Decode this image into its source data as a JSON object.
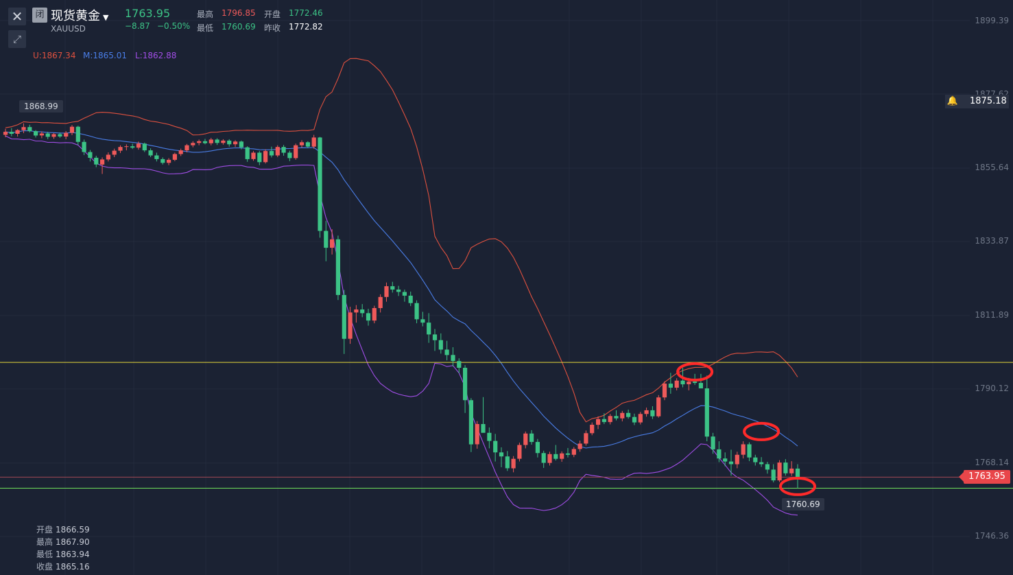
{
  "header": {
    "status_badge": "闭",
    "title": "现货黄金",
    "symbol": "XAUUSD",
    "last_price": "1763.95",
    "change": "−8.87",
    "change_pct": "−0.50%",
    "high_label": "最高",
    "high_value": "1796.85",
    "open_label": "开盘",
    "open_value": "1772.46",
    "low_label": "最低",
    "low_value": "1760.69",
    "prev_close_label": "昨收",
    "prev_close_value": "1772.82"
  },
  "bollinger": {
    "upper": "U:1867.34",
    "middle": "M:1865.01",
    "lower": "L:1862.88"
  },
  "ohlc_panel": {
    "open_label": "开盘",
    "open_value": "1866.59",
    "high_label": "最高",
    "high_value": "1867.90",
    "low_label": "最低",
    "low_value": "1863.94",
    "close_label": "收盘",
    "close_value": "1865.16"
  },
  "markers": {
    "max_label": "1868.99",
    "min_label": "1760.69",
    "alert_price": "1875.18",
    "current_price": "1763.95"
  },
  "colors": {
    "up": "#ef5a5a",
    "down": "#3cc386",
    "upper_band": "#e0513f",
    "middle_band": "#4a7ee8",
    "lower_band": "#a24ee8",
    "resistance_line": "#e6d93a",
    "support_line": "#6fe05a",
    "circle": "#ff2a2a"
  },
  "icons": {
    "close": "close-icon",
    "expand": "expand-icon",
    "alert": "bell-icon",
    "dropdown": "caret-down-icon"
  },
  "chart_data": {
    "type": "candlestick",
    "y_ticks": [
      "1899.39",
      "1877.62",
      "1855.64",
      "1833.87",
      "1811.89",
      "1790.12",
      "1768.14",
      "1746.36"
    ],
    "ylim": [
      1735,
      1905
    ],
    "horizontal_lines": [
      {
        "name": "resistance",
        "value": 1798.0
      },
      {
        "name": "current",
        "value": 1763.95
      },
      {
        "name": "support",
        "value": 1760.69
      }
    ],
    "candles": [
      [
        1865.5,
        1867.3,
        1864.8,
        1866.4
      ],
      [
        1866.4,
        1867.5,
        1865.1,
        1865.8
      ],
      [
        1865.8,
        1867.2,
        1865.0,
        1866.9
      ],
      [
        1866.9,
        1868.9,
        1866.0,
        1867.8
      ],
      [
        1867.8,
        1868.5,
        1866.2,
        1866.6
      ],
      [
        1866.6,
        1866.9,
        1864.7,
        1865.3
      ],
      [
        1865.3,
        1866.5,
        1864.5,
        1865.9
      ],
      [
        1865.9,
        1866.4,
        1864.2,
        1864.9
      ],
      [
        1864.9,
        1866.0,
        1864.3,
        1865.7
      ],
      [
        1865.7,
        1866.2,
        1864.6,
        1865.0
      ],
      [
        1865.0,
        1866.6,
        1864.2,
        1866.1
      ],
      [
        1866.1,
        1868.4,
        1865.4,
        1867.9
      ],
      [
        1867.9,
        1868.2,
        1862.5,
        1863.4
      ],
      [
        1863.4,
        1864.1,
        1859.5,
        1860.4
      ],
      [
        1860.4,
        1861.0,
        1857.6,
        1858.7
      ],
      [
        1858.7,
        1859.3,
        1855.9,
        1856.7
      ],
      [
        1856.7,
        1858.8,
        1853.9,
        1858.2
      ],
      [
        1858.2,
        1860.3,
        1857.6,
        1859.6
      ],
      [
        1859.6,
        1861.4,
        1858.9,
        1860.8
      ],
      [
        1860.8,
        1862.4,
        1860.1,
        1861.9
      ],
      [
        1861.9,
        1862.7,
        1860.9,
        1862.1
      ],
      [
        1862.1,
        1862.9,
        1861.3,
        1861.7
      ],
      [
        1861.7,
        1863.5,
        1861.1,
        1862.9
      ],
      [
        1862.9,
        1863.2,
        1860.4,
        1860.9
      ],
      [
        1860.9,
        1861.5,
        1858.9,
        1859.4
      ],
      [
        1859.4,
        1860.2,
        1857.6,
        1858.3
      ],
      [
        1858.3,
        1858.8,
        1856.7,
        1857.2
      ],
      [
        1857.2,
        1858.6,
        1856.5,
        1858.1
      ],
      [
        1858.1,
        1860.2,
        1857.7,
        1859.8
      ],
      [
        1859.8,
        1861.4,
        1859.2,
        1860.9
      ],
      [
        1860.9,
        1862.8,
        1860.3,
        1862.4
      ],
      [
        1862.4,
        1863.6,
        1861.8,
        1863.1
      ],
      [
        1863.1,
        1864.1,
        1862.4,
        1863.6
      ],
      [
        1863.6,
        1864.3,
        1862.7,
        1863.0
      ],
      [
        1863.0,
        1864.6,
        1862.4,
        1864.1
      ],
      [
        1864.1,
        1864.5,
        1862.5,
        1863.1
      ],
      [
        1863.1,
        1864.2,
        1862.6,
        1863.8
      ],
      [
        1863.8,
        1864.2,
        1862.0,
        1862.7
      ],
      [
        1862.7,
        1863.9,
        1861.9,
        1863.5
      ],
      [
        1863.5,
        1863.8,
        1861.2,
        1861.8
      ],
      [
        1861.8,
        1862.1,
        1857.5,
        1858.3
      ],
      [
        1858.3,
        1860.7,
        1857.8,
        1860.2
      ],
      [
        1860.2,
        1860.7,
        1856.5,
        1857.4
      ],
      [
        1857.4,
        1861.2,
        1857.0,
        1860.7
      ],
      [
        1860.7,
        1862.0,
        1858.8,
        1859.4
      ],
      [
        1859.4,
        1862.4,
        1858.9,
        1861.9
      ],
      [
        1861.9,
        1862.5,
        1859.3,
        1860.2
      ],
      [
        1860.2,
        1860.8,
        1857.7,
        1858.6
      ],
      [
        1858.6,
        1862.9,
        1858.1,
        1862.4
      ],
      [
        1862.4,
        1863.9,
        1861.7,
        1863.3
      ],
      [
        1863.3,
        1863.6,
        1861.6,
        1862.0
      ],
      [
        1862.0,
        1865.5,
        1861.4,
        1864.7
      ],
      [
        1864.7,
        1864.9,
        1835.0,
        1837.0
      ],
      [
        1837.0,
        1840.0,
        1828.0,
        1832.0
      ],
      [
        1832.0,
        1837.5,
        1830.0,
        1834.5
      ],
      [
        1834.5,
        1835.6,
        1816.5,
        1818.0
      ],
      [
        1818.0,
        1819.5,
        1800.5,
        1805.0
      ],
      [
        1805.0,
        1814.5,
        1803.5,
        1812.8
      ],
      [
        1812.8,
        1815.0,
        1809.8,
        1813.7
      ],
      [
        1813.7,
        1815.3,
        1811.4,
        1812.6
      ],
      [
        1812.6,
        1813.9,
        1808.9,
        1810.4
      ],
      [
        1810.4,
        1814.8,
        1809.6,
        1814.1
      ],
      [
        1814.1,
        1818.2,
        1812.8,
        1817.4
      ],
      [
        1817.4,
        1821.7,
        1816.0,
        1820.6
      ],
      [
        1820.6,
        1821.9,
        1818.7,
        1819.6
      ],
      [
        1819.6,
        1820.7,
        1817.7,
        1818.9
      ],
      [
        1818.9,
        1819.6,
        1816.0,
        1817.8
      ],
      [
        1817.8,
        1819.0,
        1814.7,
        1815.6
      ],
      [
        1815.6,
        1816.4,
        1809.6,
        1810.8
      ],
      [
        1810.8,
        1813.0,
        1808.7,
        1809.8
      ],
      [
        1809.8,
        1812.6,
        1803.8,
        1806.3
      ],
      [
        1806.3,
        1807.9,
        1801.4,
        1804.6
      ],
      [
        1804.6,
        1806.6,
        1800.6,
        1801.8
      ],
      [
        1801.8,
        1804.4,
        1798.6,
        1800.2
      ],
      [
        1800.2,
        1802.5,
        1796.8,
        1798.4
      ],
      [
        1798.4,
        1799.2,
        1794.8,
        1796.4
      ],
      [
        1796.4,
        1797.2,
        1783.0,
        1786.8
      ],
      [
        1786.8,
        1787.4,
        1771.4,
        1773.7
      ],
      [
        1773.7,
        1780.6,
        1772.4,
        1779.7
      ],
      [
        1779.7,
        1787.7,
        1778.7,
        1777.1
      ],
      [
        1777.1,
        1778.7,
        1772.5,
        1774.7
      ],
      [
        1774.7,
        1776.8,
        1768.6,
        1771.3
      ],
      [
        1771.3,
        1772.8,
        1766.9,
        1770.1
      ],
      [
        1770.1,
        1771.7,
        1765.8,
        1766.6
      ],
      [
        1766.6,
        1770.2,
        1765.4,
        1769.4
      ],
      [
        1769.4,
        1774.2,
        1768.6,
        1773.5
      ],
      [
        1773.5,
        1777.5,
        1772.5,
        1776.9
      ],
      [
        1776.9,
        1777.9,
        1773.6,
        1774.4
      ],
      [
        1774.4,
        1775.3,
        1769.8,
        1771.1
      ],
      [
        1771.1,
        1771.8,
        1766.7,
        1768.2
      ],
      [
        1768.2,
        1771.5,
        1767.4,
        1770.8
      ],
      [
        1770.8,
        1773.5,
        1768.9,
        1769.4
      ],
      [
        1769.4,
        1771.6,
        1768.5,
        1771.0
      ],
      [
        1771.0,
        1772.6,
        1769.8,
        1770.6
      ],
      [
        1770.6,
        1772.9,
        1769.9,
        1772.3
      ],
      [
        1772.3,
        1774.8,
        1771.5,
        1773.9
      ],
      [
        1773.9,
        1777.8,
        1773.3,
        1777.0
      ],
      [
        1777.0,
        1780.2,
        1776.4,
        1779.5
      ],
      [
        1779.5,
        1782.0,
        1778.2,
        1781.2
      ],
      [
        1781.2,
        1782.9,
        1779.7,
        1780.3
      ],
      [
        1780.3,
        1782.7,
        1779.6,
        1782.1
      ],
      [
        1782.1,
        1783.8,
        1780.8,
        1781.4
      ],
      [
        1781.4,
        1783.6,
        1780.5,
        1783.0
      ],
      [
        1783.0,
        1784.0,
        1781.3,
        1781.8
      ],
      [
        1781.8,
        1782.8,
        1779.4,
        1780.2
      ],
      [
        1780.2,
        1783.3,
        1779.6,
        1782.7
      ],
      [
        1782.7,
        1784.6,
        1781.9,
        1783.8
      ],
      [
        1783.8,
        1785.0,
        1781.2,
        1782.0
      ],
      [
        1782.0,
        1788.3,
        1781.6,
        1787.6
      ],
      [
        1787.6,
        1792.4,
        1786.8,
        1791.7
      ],
      [
        1791.7,
        1794.9,
        1788.7,
        1790.5
      ],
      [
        1790.5,
        1793.3,
        1789.7,
        1792.6
      ],
      [
        1792.6,
        1796.4,
        1790.6,
        1791.5
      ],
      [
        1791.5,
        1793.4,
        1789.7,
        1792.3
      ],
      [
        1792.3,
        1794.6,
        1791.3,
        1791.9
      ],
      [
        1791.9,
        1794.6,
        1790.8,
        1790.3
      ],
      [
        1790.3,
        1794.1,
        1774.6,
        1776.0
      ],
      [
        1776.0,
        1777.1,
        1770.9,
        1772.2
      ],
      [
        1772.2,
        1774.6,
        1768.4,
        1769.5
      ],
      [
        1769.5,
        1771.3,
        1767.2,
        1768.6
      ],
      [
        1768.6,
        1772.1,
        1764.4,
        1767.8
      ],
      [
        1767.8,
        1771.5,
        1766.6,
        1770.6
      ],
      [
        1770.6,
        1774.6,
        1769.5,
        1773.7
      ],
      [
        1773.7,
        1774.3,
        1768.7,
        1769.8
      ],
      [
        1769.8,
        1770.6,
        1767.4,
        1768.4
      ],
      [
        1768.4,
        1769.9,
        1767.0,
        1767.8
      ],
      [
        1767.8,
        1768.5,
        1765.0,
        1766.2
      ],
      [
        1766.2,
        1767.8,
        1762.4,
        1763.0
      ],
      [
        1763.0,
        1769.0,
        1762.5,
        1768.3
      ],
      [
        1768.3,
        1769.3,
        1764.4,
        1765.1
      ],
      [
        1765.1,
        1768.7,
        1764.3,
        1766.5
      ],
      [
        1766.5,
        1767.8,
        1760.7,
        1763.95
      ]
    ]
  }
}
